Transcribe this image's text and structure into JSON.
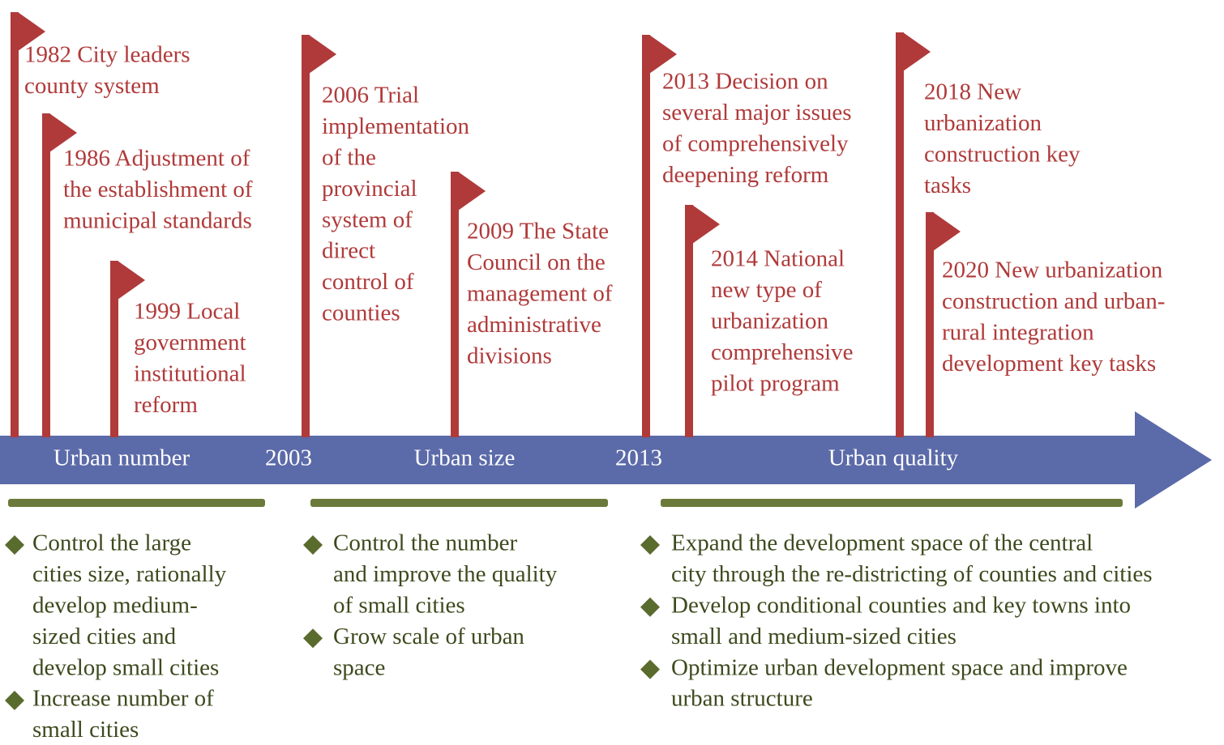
{
  "events": [
    {
      "lines": [
        "1982  City leaders",
        "county system"
      ]
    },
    {
      "lines": [
        "1986  Adjustment of",
        "the establishment of",
        "municipal standards"
      ]
    },
    {
      "lines": [
        "1999  Local",
        "government",
        "institutional",
        "reform"
      ]
    },
    {
      "lines": [
        "2006  Trial",
        "implementation",
        "of the",
        "provincial",
        "system of",
        "direct",
        "control of",
        "counties"
      ]
    },
    {
      "lines": [
        "2009  The State",
        "Council on the",
        "management of",
        "administrative",
        "divisions"
      ]
    },
    {
      "lines": [
        "2013 Decision on",
        "several major issues",
        "of comprehensively",
        "deepening reform"
      ]
    },
    {
      "lines": [
        "2014 National",
        "new type of",
        "urbanization",
        "comprehensive",
        "pilot program"
      ]
    },
    {
      "lines": [
        "2018 New",
        "urbanization",
        "construction key",
        "tasks"
      ]
    },
    {
      "lines": [
        "2020 New urbanization",
        "construction and urban-",
        "rural integration",
        "development key tasks"
      ]
    }
  ],
  "axis_labels": [
    "Urban number",
    "2003",
    "Urban size",
    "2013",
    "Urban quality"
  ],
  "stages": [
    {
      "bullets": [
        {
          "lines": [
            "Control the large",
            "cities size, rationally",
            "develop medium-",
            "sized cities and",
            "develop small cities"
          ]
        },
        {
          "lines": [
            "Increase number of",
            "small cities"
          ]
        }
      ]
    },
    {
      "bullets": [
        {
          "lines": [
            "Control the number",
            "and improve the quality",
            "of small cities"
          ]
        },
        {
          "lines": [
            "Grow scale of urban",
            "space"
          ]
        }
      ]
    },
    {
      "bullets": [
        {
          "lines": [
            "Expand the development space of the central",
            "city through the re-districting of counties and cities"
          ]
        },
        {
          "lines": [
            "Develop conditional counties and key towns into",
            "small and medium-sized cities"
          ]
        },
        {
          "lines": [
            "Optimize urban development space and improve",
            "urban structure"
          ]
        }
      ]
    }
  ]
}
